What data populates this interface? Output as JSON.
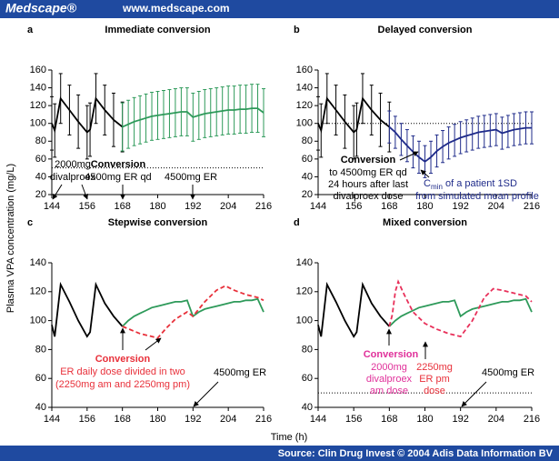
{
  "header": {
    "brand": "Medscape®",
    "url": "www.medscape.com"
  },
  "footer": {
    "source": "Source: Clin Drug Invest © 2004 Adis Data Information BV"
  },
  "axis_labels": {
    "y": "Plasma VPA concentration (mg/L)",
    "x": "Time (h)"
  },
  "chart_data": [
    {
      "type": "line",
      "label": "a",
      "title": "Immediate conversion",
      "xlim": [
        144,
        216
      ],
      "xticks": [
        144,
        156,
        168,
        180,
        192,
        204,
        216
      ],
      "ylim": [
        20,
        160
      ],
      "yticks": [
        20,
        40,
        60,
        80,
        100,
        120,
        140,
        160
      ],
      "reference_line": 50,
      "series": [
        {
          "color": "#000000",
          "dash": false,
          "x": [
            144,
            145,
            147,
            150,
            153,
            156,
            157,
            159,
            162,
            165,
            168
          ],
          "values": [
            100,
            92,
            128,
            115,
            102,
            90,
            93,
            128,
            115,
            104,
            96
          ],
          "errors": [
            30,
            30,
            28,
            28,
            30,
            30,
            30,
            28,
            28,
            30,
            28
          ]
        },
        {
          "color": "#2e9a5a",
          "dash": false,
          "x": [
            168,
            170,
            172,
            174,
            176,
            178,
            180,
            182,
            184,
            186,
            188,
            190,
            192,
            194,
            196,
            198,
            200,
            202,
            204,
            206,
            208,
            210,
            212,
            214,
            216
          ],
          "values": [
            96,
            99,
            102,
            104,
            106,
            108,
            109,
            110,
            111,
            112,
            113,
            113,
            107,
            109,
            111,
            112,
            113,
            114,
            115,
            115,
            116,
            116,
            117,
            117,
            112
          ],
          "errors": [
            27,
            27,
            27,
            27,
            27,
            27,
            27,
            27,
            27,
            27,
            27,
            27,
            27,
            27,
            27,
            27,
            27,
            27,
            27,
            27,
            27,
            27,
            27,
            27,
            27
          ]
        }
      ],
      "annotations": [
        {
          "text": "2000mg",
          "color": "#000000",
          "bold": false
        },
        {
          "text": "divalproex",
          "color": "#000000",
          "bold": false
        },
        {
          "text": "Conversion",
          "color": "#000000",
          "bold": true
        },
        {
          "text": "4500mg ER qd",
          "color": "#000000",
          "bold": false
        },
        {
          "text": "4500mg ER",
          "color": "#000000",
          "bold": false
        }
      ]
    },
    {
      "type": "line",
      "label": "b",
      "title": "Delayed conversion",
      "xlim": [
        144,
        216
      ],
      "xticks": [
        144,
        156,
        168,
        180,
        192,
        204,
        216
      ],
      "ylim": [
        20,
        160
      ],
      "yticks": [
        20,
        40,
        60,
        80,
        100,
        120,
        140,
        160
      ],
      "reference_line": 100,
      "series": [
        {
          "color": "#000000",
          "dash": false,
          "x": [
            144,
            145,
            147,
            150,
            153,
            156,
            157,
            159,
            162,
            165,
            168
          ],
          "values": [
            100,
            92,
            128,
            115,
            102,
            90,
            93,
            128,
            115,
            104,
            96
          ],
          "errors": [
            30,
            30,
            28,
            28,
            30,
            30,
            30,
            28,
            28,
            30,
            28
          ]
        },
        {
          "color": "#1f2b8a",
          "dash": false,
          "x": [
            168,
            170,
            172,
            174,
            176,
            178,
            180,
            182,
            184,
            186,
            188,
            190,
            192,
            194,
            196,
            198,
            200,
            202,
            204,
            206,
            208,
            210,
            212,
            214,
            216
          ],
          "values": [
            96,
            90,
            82,
            75,
            68,
            62,
            57,
            62,
            69,
            74,
            78,
            81,
            84,
            86,
            88,
            90,
            91,
            92,
            93,
            89,
            91,
            93,
            94,
            95,
            95
          ],
          "errors": [
            18,
            18,
            18,
            18,
            18,
            18,
            18,
            18,
            18,
            18,
            18,
            18,
            18,
            18,
            18,
            18,
            18,
            18,
            18,
            18,
            18,
            18,
            18,
            18,
            18
          ]
        }
      ],
      "annotations": [
        {
          "text": "Conversion",
          "color": "#000000",
          "bold": true
        },
        {
          "text": "to 4500mg ER qd",
          "color": "#000000",
          "bold": false
        },
        {
          "text": "24 hours after last",
          "color": "#000000",
          "bold": false
        },
        {
          "text": "divalproex dose",
          "color": "#000000",
          "bold": false
        },
        {
          "text": "C",
          "color": "#1f2b8a",
          "bold": false
        },
        {
          "text": "min",
          "color": "#1f2b8a",
          "bold": false
        },
        {
          "text": "of a patient 1SD",
          "color": "#1f2b8a",
          "bold": false
        },
        {
          "text": "from simulated mean profile",
          "color": "#1f2b8a",
          "bold": false
        }
      ]
    },
    {
      "type": "line",
      "label": "c",
      "title": "Stepwise conversion",
      "xlim": [
        144,
        216
      ],
      "xticks": [
        144,
        156,
        168,
        180,
        192,
        204,
        216
      ],
      "ylim": [
        40,
        140
      ],
      "yticks": [
        40,
        60,
        80,
        100,
        120,
        140
      ],
      "series": [
        {
          "color": "#000000",
          "dash": false,
          "x": [
            144,
            145,
            147,
            150,
            153,
            156,
            157,
            159,
            162,
            165,
            168
          ],
          "values": [
            97,
            89,
            125,
            113,
            100,
            89,
            92,
            125,
            112,
            103,
            96
          ]
        },
        {
          "color": "#2e9a5a",
          "dash": false,
          "x": [
            168,
            170,
            172,
            174,
            176,
            178,
            180,
            182,
            184,
            186,
            188,
            190,
            192,
            194,
            196,
            198,
            200,
            202,
            204,
            206,
            208,
            210,
            212,
            214,
            216
          ],
          "values": [
            96,
            100,
            103,
            105,
            107,
            109,
            110,
            111,
            112,
            113,
            113,
            114,
            103,
            106,
            108,
            109,
            110,
            111,
            112,
            113,
            113,
            114,
            114,
            115,
            106
          ]
        },
        {
          "color": "#e8303a",
          "dash": true,
          "x": [
            168,
            174,
            180,
            183,
            186,
            190,
            192,
            196,
            200,
            203,
            206,
            210,
            214,
            216
          ],
          "values": [
            96,
            91,
            88,
            95,
            101,
            106,
            103,
            113,
            121,
            124,
            121,
            118,
            116,
            114
          ]
        }
      ],
      "annotations": [
        {
          "text": "Conversion",
          "color": "#e8303a",
          "bold": true
        },
        {
          "text": "ER daily dose divided in two",
          "color": "#e8303a",
          "bold": false
        },
        {
          "text": "(2250mg am and 2250mg pm)",
          "color": "#e8303a",
          "bold": false
        },
        {
          "text": "4500mg ER",
          "color": "#000000",
          "bold": false
        }
      ]
    },
    {
      "type": "line",
      "label": "d",
      "title": "Mixed conversion",
      "xlim": [
        144,
        216
      ],
      "xticks": [
        144,
        156,
        168,
        180,
        192,
        204,
        216
      ],
      "ylim": [
        40,
        140
      ],
      "yticks": [
        40,
        60,
        80,
        100,
        120,
        140
      ],
      "reference_line": 50,
      "series": [
        {
          "color": "#000000",
          "dash": false,
          "x": [
            144,
            145,
            147,
            150,
            153,
            156,
            157,
            159,
            162,
            165,
            168
          ],
          "values": [
            97,
            89,
            125,
            113,
            100,
            89,
            92,
            125,
            112,
            103,
            96
          ]
        },
        {
          "color": "#2e9a5a",
          "dash": false,
          "x": [
            168,
            170,
            172,
            174,
            176,
            178,
            180,
            182,
            184,
            186,
            188,
            190,
            192,
            194,
            196,
            198,
            200,
            202,
            204,
            206,
            208,
            210,
            212,
            214,
            216
          ],
          "values": [
            96,
            100,
            103,
            105,
            107,
            109,
            110,
            111,
            112,
            113,
            113,
            114,
            103,
            106,
            108,
            109,
            110,
            111,
            112,
            113,
            113,
            114,
            114,
            115,
            106
          ]
        },
        {
          "color": "#e8305a",
          "dash": true,
          "x": [
            168,
            169,
            170,
            171,
            173,
            176,
            180,
            184,
            188,
            192,
            196,
            200,
            203,
            206,
            210,
            214,
            216
          ],
          "values": [
            96,
            104,
            120,
            127,
            118,
            106,
            98,
            94,
            91,
            89,
            100,
            116,
            122,
            121,
            119,
            117,
            113
          ]
        }
      ],
      "annotations": [
        {
          "text": "Conversion",
          "color": "#e0309a",
          "bold": true
        },
        {
          "text": "2000mg",
          "color": "#e0309a",
          "bold": false
        },
        {
          "text": "divalproex",
          "color": "#e0309a",
          "bold": false
        },
        {
          "text": "am dose",
          "color": "#e0309a",
          "bold": false
        },
        {
          "text": "2250mg",
          "color": "#e8303a",
          "bold": false
        },
        {
          "text": "ER pm",
          "color": "#e8303a",
          "bold": false
        },
        {
          "text": "dose",
          "color": "#e8303a",
          "bold": false
        },
        {
          "text": "4500mg ER",
          "color": "#000000",
          "bold": false
        }
      ]
    }
  ]
}
